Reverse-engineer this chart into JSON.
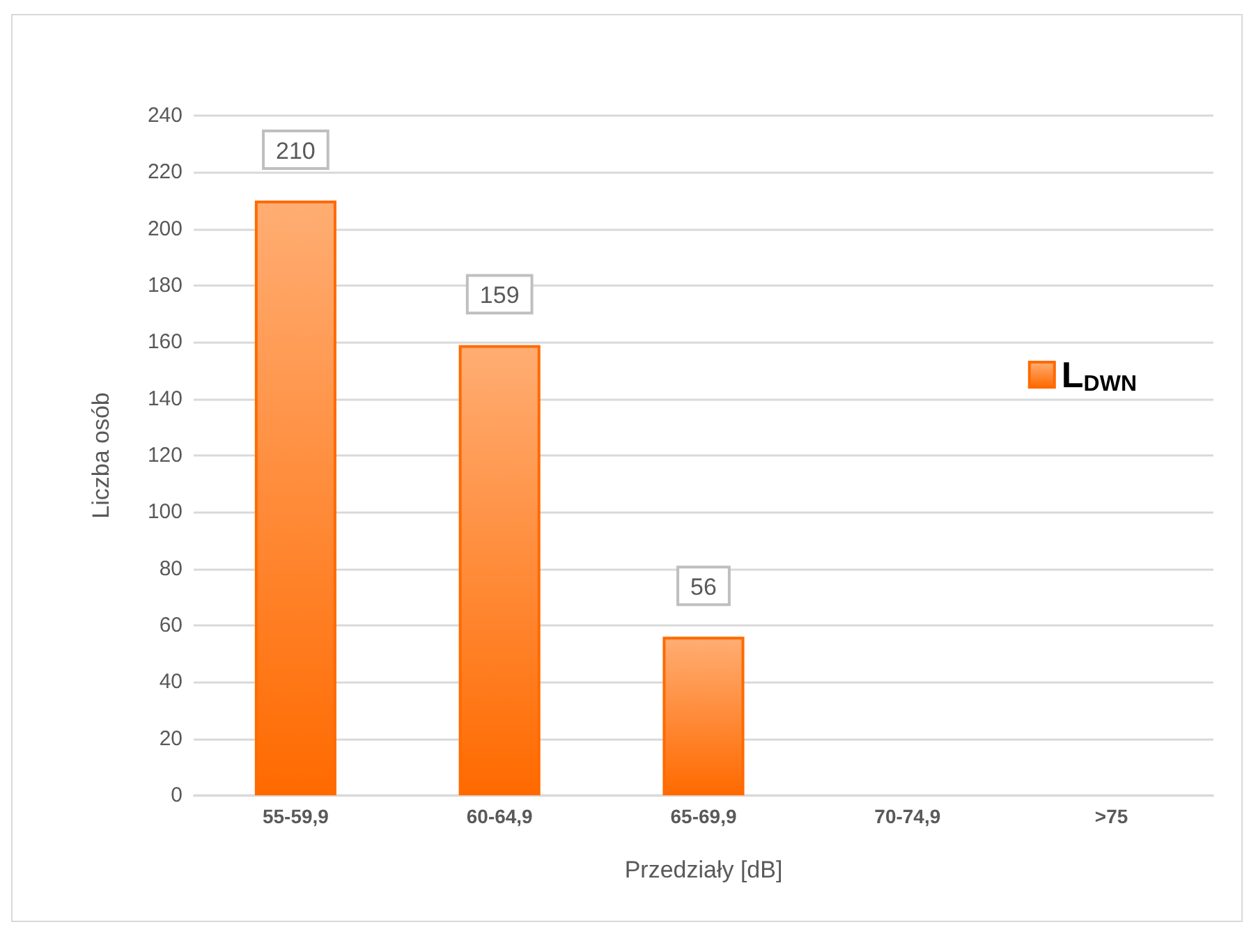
{
  "chart_data": {
    "type": "bar",
    "xlabel": "Przedziały [dB]",
    "ylabel": "Liczba osób",
    "categories": [
      "55-59,9",
      "60-64,9",
      "65-69,9",
      "70-74,9",
      ">75"
    ],
    "series": [
      {
        "name": "L$_{DWN}$",
        "color": "#ff6a00",
        "values": [
          210,
          159,
          56,
          null,
          null
        ]
      }
    ],
    "ylim": [
      0,
      240
    ],
    "yticks": [
      0,
      20,
      40,
      60,
      80,
      100,
      120,
      140,
      160,
      180,
      200,
      220,
      240
    ],
    "grid": "y",
    "legend": "right",
    "data_labels": true
  }
}
